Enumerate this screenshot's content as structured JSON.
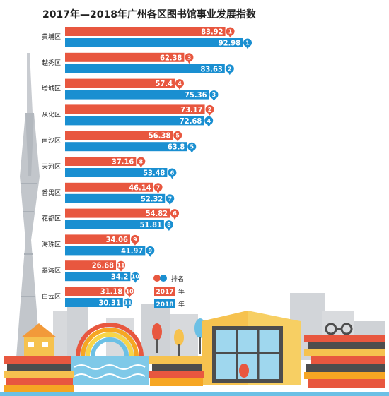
{
  "chart_data": {
    "type": "bar",
    "title": "2017年—2018年广州各区图书馆事业发展指数",
    "categories": [
      "黄埔区",
      "越秀区",
      "增城区",
      "从化区",
      "南沙区",
      "天河区",
      "番禺区",
      "花都区",
      "海珠区",
      "荔湾区",
      "白云区"
    ],
    "series": [
      {
        "name": "2017",
        "values": [
          83.92,
          62.38,
          57.4,
          73.17,
          56.38,
          37.16,
          46.14,
          54.82,
          34.06,
          26.68,
          31.18
        ],
        "ranks": [
          "1",
          "3",
          "4",
          "2",
          "5",
          "8",
          "7",
          "6",
          "9",
          "11",
          "10"
        ],
        "value_labels": [
          "83.92",
          "62.38",
          "57.4",
          "73.17",
          "56.38",
          "37.16",
          "46.14",
          "54.82",
          "34.06",
          "26.68",
          "31.18"
        ],
        "color": "#e8573f"
      },
      {
        "name": "2018",
        "values": [
          92.98,
          83.63,
          75.36,
          72.68,
          63.8,
          53.48,
          52.32,
          51.81,
          41.97,
          34.2,
          30.31
        ],
        "ranks": [
          "1",
          "2",
          "3",
          "4",
          "5",
          "6",
          "7",
          "8",
          "9",
          "10",
          "11"
        ],
        "value_labels": [
          "92.98",
          "83.63",
          "75.36",
          "72.68",
          "63.8",
          "53.48",
          "52.32",
          "51.81",
          "41.97",
          "34.2",
          "30.31"
        ],
        "color": "#1a8fd1"
      }
    ],
    "legend": {
      "rank_label": "排名",
      "entries": [
        {
          "num": "2017",
          "suffix": "年",
          "color": "#e8573f"
        },
        {
          "num": "2018",
          "suffix": "年",
          "color": "#1a8fd1"
        }
      ],
      "placement": "bottom-right"
    },
    "xlim": [
      0,
      100
    ],
    "grid": false
  }
}
